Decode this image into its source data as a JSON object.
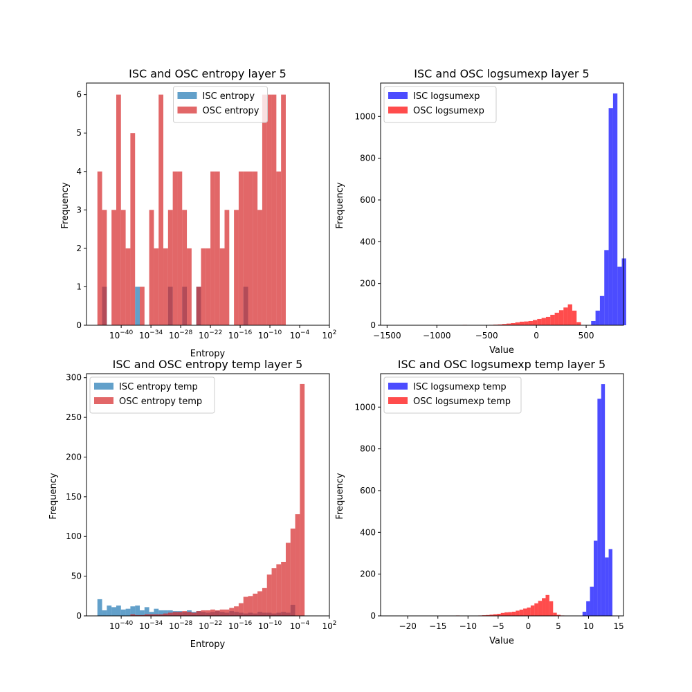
{
  "chart_data": [
    {
      "type": "bar",
      "title": "ISC and OSC entropy layer 5",
      "xlabel": "Entropy",
      "ylabel": "Frequency",
      "xscale": "log",
      "xlim_log10": [
        -47,
        2
      ],
      "ylim": [
        0,
        6.3
      ],
      "xticks": [
        {
          "exp": -40,
          "label": "10^-40"
        },
        {
          "exp": -34,
          "label": "10^-34"
        },
        {
          "exp": -28,
          "label": "10^-28"
        },
        {
          "exp": -22,
          "label": "10^-22"
        },
        {
          "exp": -16,
          "label": "10^-16"
        },
        {
          "exp": -10,
          "label": "10^-10"
        },
        {
          "exp": -4,
          "label": "10^-4"
        },
        {
          "exp": 2,
          "label": "10^2"
        }
      ],
      "yticks": [
        0,
        1,
        2,
        3,
        4,
        5,
        6
      ],
      "legend": "top-center",
      "bins": {
        "start": -44.8,
        "width": 0.95
      },
      "series": [
        {
          "name": "ISC entropy",
          "color": "#1f77b4",
          "alpha": 0.7,
          "values": [
            0,
            1,
            0,
            0,
            0,
            0,
            0,
            0,
            1,
            0,
            0,
            0,
            0,
            0,
            0,
            1,
            0,
            0,
            1,
            0,
            0,
            1,
            0,
            0,
            0,
            0,
            0,
            0,
            0,
            0,
            0,
            1,
            0,
            0,
            0,
            0,
            0,
            0,
            0,
            0,
            0,
            0,
            0,
            0,
            0,
            0,
            0
          ]
        },
        {
          "name": "OSC entropy",
          "color": "#d62728",
          "alpha": 0.7,
          "values": [
            4,
            3,
            0,
            3,
            6,
            3,
            2,
            5,
            0,
            1,
            0,
            3,
            2,
            6,
            2,
            3,
            4,
            4,
            3,
            2,
            0,
            1,
            2,
            2,
            4,
            4,
            2,
            3,
            0,
            3,
            4,
            4,
            4,
            4,
            3,
            6,
            6,
            6,
            4,
            6,
            0,
            0,
            0,
            0,
            0,
            0,
            0
          ]
        }
      ]
    },
    {
      "type": "bar",
      "title": "ISC and OSC logsumexp layer 5",
      "xlabel": "Value",
      "ylabel": "Frequency",
      "xlim": [
        -1565,
        875
      ],
      "ylim": [
        0,
        1160
      ],
      "xticks": [
        -1500,
        -1000,
        -500,
        0,
        500
      ],
      "yticks": [
        0,
        200,
        400,
        600,
        800,
        1000
      ],
      "legend": "top-left",
      "series": [
        {
          "name": "ISC logsumexp",
          "color": "#0000ff",
          "alpha": 0.7,
          "bins": {
            "start": 550,
            "width": 44
          },
          "values": [
            20,
            70,
            140,
            360,
            1040,
            1110,
            280,
            320
          ]
        },
        {
          "name": "OSC logsumexp",
          "color": "#ff0000",
          "alpha": 0.7,
          "bins": {
            "start": -740,
            "width": 44
          },
          "values": [
            2,
            0,
            0,
            0,
            1,
            0,
            2,
            3,
            4,
            6,
            8,
            10,
            14,
            17,
            18,
            20,
            25,
            30,
            35,
            40,
            50,
            60,
            72,
            85,
            100,
            70,
            15
          ]
        }
      ]
    },
    {
      "type": "bar",
      "title": "ISC and OSC entropy temp layer 5",
      "xlabel": "Entropy",
      "ylabel": "Frequency",
      "xscale": "log",
      "xlim_log10": [
        -47,
        2
      ],
      "ylim": [
        0,
        305
      ],
      "xticks": [
        {
          "exp": -40,
          "label": "10^-40"
        },
        {
          "exp": -34,
          "label": "10^-34"
        },
        {
          "exp": -28,
          "label": "10^-28"
        },
        {
          "exp": -22,
          "label": "10^-22"
        },
        {
          "exp": -16,
          "label": "10^-16"
        },
        {
          "exp": -10,
          "label": "10^-10"
        },
        {
          "exp": -4,
          "label": "10^-4"
        },
        {
          "exp": 2,
          "label": "10^2"
        }
      ],
      "yticks": [
        0,
        50,
        100,
        150,
        200,
        250,
        300
      ],
      "legend": "top-left",
      "bins": {
        "start": -44.8,
        "width": 0.95
      },
      "series": [
        {
          "name": "ISC entropy temp",
          "color": "#1f77b4",
          "alpha": 0.7,
          "values": [
            21,
            7,
            13,
            11,
            13,
            8,
            9,
            12,
            13,
            7,
            11,
            5,
            9,
            7,
            7,
            7,
            6,
            6,
            5,
            7,
            5,
            6,
            5,
            4,
            5,
            6,
            5,
            4,
            6,
            5,
            4,
            3,
            4,
            3,
            5,
            4,
            4,
            3,
            4,
            5,
            4,
            14
          ]
        },
        {
          "name": "OSC entropy temp",
          "color": "#d62728",
          "alpha": 0.7,
          "values": [
            0,
            0,
            0,
            0,
            0,
            0,
            0,
            2,
            1,
            1,
            2,
            2,
            2,
            2,
            3,
            4,
            5,
            5,
            6,
            5,
            4,
            6,
            7,
            7,
            8,
            7,
            8,
            8,
            10,
            12,
            16,
            24,
            25,
            28,
            31,
            35,
            52,
            60,
            65,
            68,
            92,
            110,
            128,
            292
          ]
        }
      ]
    },
    {
      "type": "bar",
      "title": "ISC and OSC logsumexp temp layer 5",
      "xlabel": "Value",
      "ylabel": "Frequency",
      "xlim": [
        -24.5,
        15.8
      ],
      "ylim": [
        0,
        1160
      ],
      "xticks": [
        -20,
        -15,
        -10,
        -5,
        0,
        5,
        10,
        15
      ],
      "yticks": [
        0,
        200,
        400,
        600,
        800,
        1000
      ],
      "legend": "top-left",
      "series": [
        {
          "name": "ISC logsumexp temp",
          "color": "#0000ff",
          "alpha": 0.7,
          "bins": {
            "start": 9.0,
            "width": 0.62
          },
          "values": [
            20,
            70,
            140,
            360,
            1040,
            1110,
            280,
            320
          ]
        },
        {
          "name": "OSC logsumexp temp",
          "color": "#ff0000",
          "alpha": 0.7,
          "bins": {
            "start": -12.0,
            "width": 0.62
          },
          "values": [
            2,
            0,
            0,
            0,
            1,
            0,
            2,
            3,
            4,
            6,
            8,
            10,
            14,
            17,
            18,
            20,
            25,
            30,
            35,
            40,
            50,
            60,
            72,
            85,
            100,
            70,
            15,
            5,
            2,
            1,
            1,
            1,
            1,
            1,
            1
          ]
        }
      ]
    }
  ]
}
